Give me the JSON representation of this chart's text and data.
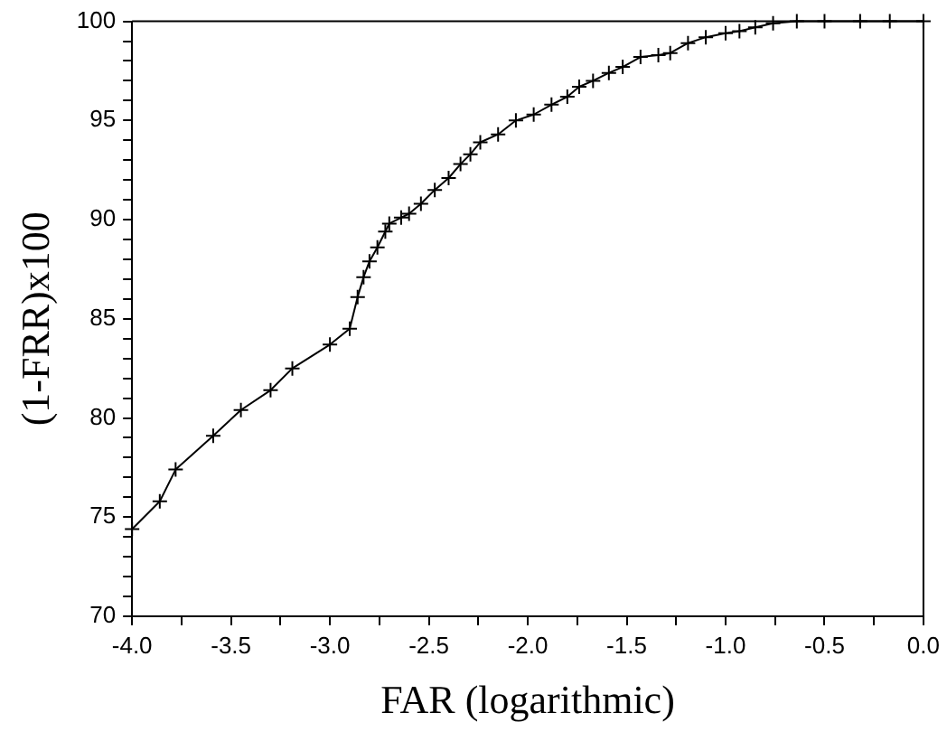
{
  "chart_data": {
    "type": "line",
    "xlabel": "FAR (logarithmic)",
    "ylabel": "(1-FRR)x100",
    "x": [
      -4.0,
      -3.86,
      -3.78,
      -3.59,
      -3.45,
      -3.3,
      -3.19,
      -3.0,
      -2.9,
      -2.86,
      -2.83,
      -2.8,
      -2.76,
      -2.72,
      -2.7,
      -2.64,
      -2.6,
      -2.54,
      -2.47,
      -2.4,
      -2.34,
      -2.29,
      -2.24,
      -2.15,
      -2.06,
      -1.97,
      -1.88,
      -1.8,
      -1.74,
      -1.67,
      -1.59,
      -1.52,
      -1.43,
      -1.34,
      -1.28,
      -1.19,
      -1.1,
      -1.0,
      -0.93,
      -0.85,
      -0.76,
      -0.64,
      -0.5,
      -0.32,
      -0.17,
      0.0
    ],
    "series": [
      {
        "color": "#000000",
        "values": [
          74.4,
          75.8,
          77.4,
          79.1,
          80.4,
          81.4,
          82.5,
          83.7,
          84.5,
          86.1,
          87.1,
          87.9,
          88.6,
          89.4,
          89.8,
          90.1,
          90.3,
          90.8,
          91.5,
          92.1,
          92.8,
          93.3,
          93.9,
          94.3,
          95.0,
          95.3,
          95.8,
          96.2,
          96.7,
          97.0,
          97.4,
          97.7,
          98.2,
          98.3,
          98.4,
          98.9,
          99.2,
          99.4,
          99.5,
          99.7,
          99.9,
          100,
          100,
          100,
          100,
          100
        ]
      }
    ],
    "xlim": [
      -4.0,
      0.0
    ],
    "xticks": [
      {
        "value": -4,
        "label": "-4.0"
      },
      {
        "value": -3.75,
        "label": null
      },
      {
        "value": -3.5,
        "label": "-3.5"
      },
      {
        "value": -3.25,
        "label": null
      },
      {
        "value": -3,
        "label": "-3.0"
      },
      {
        "value": -2.75,
        "label": null
      },
      {
        "value": -2.5,
        "label": "-2.5"
      },
      {
        "value": -2.25,
        "label": null
      },
      {
        "value": -2,
        "label": "-2.0"
      },
      {
        "value": -1.75,
        "label": null
      },
      {
        "value": -1.5,
        "label": "-1.5"
      },
      {
        "value": -1.25,
        "label": null
      },
      {
        "value": -1,
        "label": "-1.0"
      },
      {
        "value": -0.75,
        "label": null
      },
      {
        "value": -0.5,
        "label": "-0.5"
      },
      {
        "value": -0.25,
        "label": null
      },
      {
        "value": 0,
        "label": "0.0"
      }
    ],
    "ylim": [
      70,
      100
    ],
    "yticks": [
      70,
      {
        "value": 71,
        "label": null
      },
      {
        "value": 72,
        "label": null
      },
      {
        "value": 73,
        "label": null
      },
      {
        "value": 74,
        "label": null
      },
      75,
      {
        "value": 76,
        "label": null
      },
      {
        "value": 77,
        "label": null
      },
      {
        "value": 78,
        "label": null
      },
      {
        "value": 79,
        "label": null
      },
      80,
      {
        "value": 81,
        "label": null
      },
      {
        "value": 82,
        "label": null
      },
      {
        "value": 83,
        "label": null
      },
      {
        "value": 84,
        "label": null
      },
      85,
      {
        "value": 86,
        "label": null
      },
      {
        "value": 87,
        "label": null
      },
      {
        "value": 88,
        "label": null
      },
      {
        "value": 89,
        "label": null
      },
      90,
      {
        "value": 91,
        "label": null
      },
      {
        "value": 92,
        "label": null
      },
      {
        "value": 93,
        "label": null
      },
      {
        "value": 94,
        "label": null
      },
      95,
      {
        "value": 96,
        "label": null
      },
      {
        "value": 97,
        "label": null
      },
      {
        "value": 98,
        "label": null
      },
      {
        "value": 99,
        "label": null
      },
      100
    ],
    "grid": false,
    "legend": false,
    "marker": "cross",
    "line_style": "solid"
  }
}
